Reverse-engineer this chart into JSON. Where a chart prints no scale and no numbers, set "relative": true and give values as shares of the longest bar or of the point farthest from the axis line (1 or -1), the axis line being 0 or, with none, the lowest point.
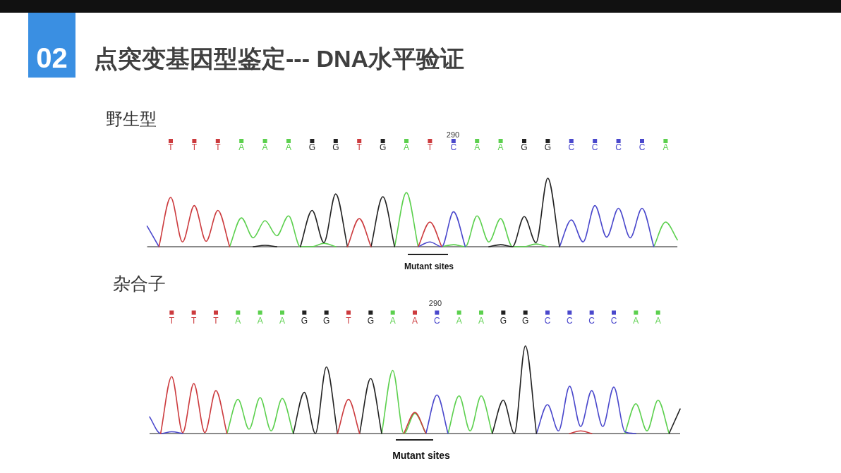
{
  "chart_data": [
    {
      "type": "other",
      "title": "点突变基因型鉴定--- DNA水平验证",
      "annotations": [
        "02"
      ]
    },
    {
      "type": "line",
      "title": "野生型",
      "relative": true,
      "categories": [
        null,
        null,
        "T",
        null,
        "T",
        null,
        "T",
        null,
        "A",
        null,
        "A",
        null,
        "A",
        null,
        "G",
        null,
        "G",
        null,
        "T",
        null,
        "G",
        null,
        "A",
        null,
        "T",
        null,
        "C",
        null,
        "A",
        null,
        "A",
        null,
        "G",
        null,
        "G",
        null,
        "C",
        null,
        "C",
        null,
        "C",
        null,
        "C",
        null,
        "A",
        null
      ],
      "annotations": [
        "290",
        "Mutant sites"
      ],
      "series": [
        {
          "color": "#5cd04e",
          "values": [
            null,
            null,
            null,
            null,
            null,
            null,
            null,
            0,
            0.42,
            0.13,
            0.38,
            0.16,
            0.45,
            0,
            0,
            0.05,
            0,
            null,
            null,
            null,
            null,
            0,
            0.79,
            0,
            null,
            0,
            0.03,
            0,
            0.45,
            0.07,
            0.41,
            0,
            0,
            0.04,
            0,
            null,
            null,
            null,
            null,
            null,
            null,
            null,
            null,
            0,
            0.36,
            0.1
          ]
        },
        {
          "color": "#4a48cc",
          "values": [
            0.3,
            0,
            null,
            null,
            null,
            null,
            null,
            null,
            null,
            null,
            null,
            null,
            null,
            null,
            null,
            null,
            null,
            null,
            null,
            null,
            null,
            null,
            null,
            0,
            0.07,
            0,
            0.51,
            0,
            null,
            null,
            null,
            null,
            null,
            null,
            null,
            0,
            0.39,
            0.07,
            0.6,
            0.14,
            0.56,
            0.13,
            0.56,
            0,
            null,
            null
          ]
        },
        {
          "color": "#222222",
          "values": [
            null,
            null,
            null,
            null,
            null,
            null,
            null,
            null,
            null,
            0,
            0.02,
            0,
            null,
            0,
            0.53,
            0.06,
            0.77,
            0,
            null,
            0,
            0.73,
            0,
            null,
            null,
            null,
            null,
            null,
            null,
            null,
            0,
            0.03,
            0,
            0.44,
            0.06,
            1,
            0,
            null,
            null,
            null,
            null,
            null,
            null,
            null,
            null,
            null,
            null
          ]
        },
        {
          "color": "#cc3b3e",
          "values": [
            null,
            0,
            0.72,
            0.07,
            0.6,
            0.08,
            0.53,
            0,
            null,
            null,
            null,
            null,
            null,
            null,
            null,
            null,
            null,
            0,
            0.41,
            0,
            null,
            null,
            null,
            0,
            0.36,
            0,
            null,
            null,
            null,
            null,
            null,
            null,
            null,
            null,
            null,
            null,
            null,
            null,
            null,
            null,
            null,
            null,
            null,
            null,
            null,
            null
          ]
        }
      ]
    },
    {
      "type": "line",
      "title": "杂合子",
      "relative": true,
      "categories": [
        null,
        null,
        "T",
        null,
        "T",
        null,
        "T",
        null,
        "A",
        null,
        "A",
        null,
        "A",
        null,
        "G",
        null,
        "G",
        null,
        "T",
        null,
        "G",
        null,
        "A",
        null,
        "A",
        null,
        "C",
        null,
        "A",
        null,
        "A",
        null,
        "G",
        null,
        "G",
        null,
        "C",
        null,
        "C",
        null,
        "C",
        null,
        "C",
        null,
        "A",
        null,
        "A",
        null,
        null
      ],
      "annotations": [
        "290",
        "Mutant sites"
      ],
      "series": [
        {
          "color": "#5cd04e",
          "values": [
            null,
            null,
            null,
            null,
            null,
            null,
            null,
            0,
            0.39,
            0.05,
            0.41,
            0.03,
            0.4,
            0,
            null,
            null,
            null,
            null,
            null,
            null,
            null,
            0,
            0.72,
            0,
            0.23,
            0,
            null,
            0,
            0.43,
            0.03,
            0.43,
            0,
            null,
            null,
            null,
            null,
            null,
            null,
            null,
            null,
            null,
            null,
            null,
            0,
            0.34,
            0.03,
            0.38,
            0,
            null
          ]
        },
        {
          "color": "#4a48cc",
          "values": [
            0.19,
            0,
            0.02,
            0,
            null,
            null,
            null,
            null,
            null,
            null,
            null,
            null,
            null,
            null,
            null,
            null,
            null,
            null,
            null,
            null,
            null,
            null,
            null,
            null,
            null,
            0,
            0.44,
            0,
            null,
            null,
            null,
            null,
            null,
            null,
            null,
            0,
            0.33,
            0.03,
            0.54,
            0.08,
            0.49,
            0.08,
            0.53,
            0.02,
            0,
            null,
            null,
            null,
            null
          ]
        },
        {
          "color": "#222222",
          "values": [
            null,
            null,
            null,
            null,
            null,
            null,
            null,
            null,
            null,
            null,
            null,
            null,
            null,
            0,
            0.47,
            0,
            0.76,
            0,
            null,
            0,
            0.63,
            0,
            null,
            null,
            null,
            null,
            null,
            null,
            null,
            null,
            null,
            0,
            0.38,
            0,
            1,
            0,
            null,
            null,
            null,
            null,
            null,
            null,
            null,
            null,
            null,
            null,
            null,
            0,
            0.28
          ]
        },
        {
          "color": "#cc3b3e",
          "values": [
            null,
            0,
            0.65,
            0.01,
            0.57,
            0.01,
            0.49,
            0,
            null,
            null,
            null,
            null,
            null,
            null,
            null,
            null,
            null,
            0,
            0.39,
            0,
            null,
            null,
            null,
            0,
            0.24,
            0,
            null,
            null,
            null,
            null,
            null,
            null,
            null,
            null,
            null,
            null,
            null,
            null,
            0,
            0.03,
            0,
            null,
            null,
            null,
            null,
            null,
            null,
            null,
            null
          ]
        }
      ]
    }
  ]
}
